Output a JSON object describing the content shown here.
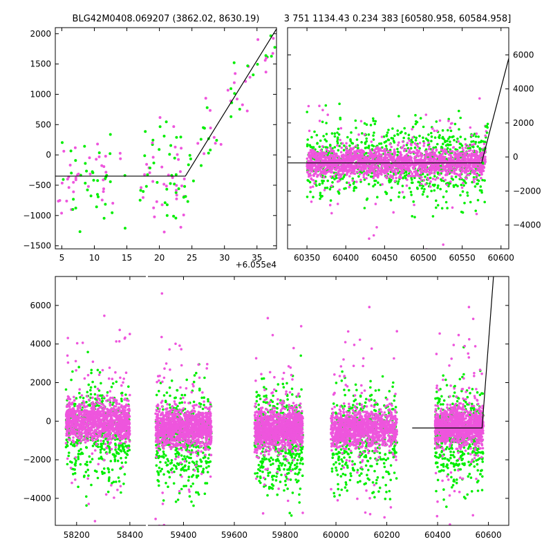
{
  "chart_data": [
    {
      "type": "scatter",
      "id": "top-left",
      "title": "BLG42M0408.069207 (3862.02, 8630.19)",
      "xlim": [
        4,
        38
      ],
      "ylim": [
        -1550,
        2100
      ],
      "xticks": [
        5,
        10,
        15,
        20,
        25,
        30,
        35
      ],
      "yticks": [
        -1500,
        -1000,
        -500,
        0,
        500,
        1000,
        1500,
        2000
      ],
      "x_offset_label": "+6.055e4",
      "series_colors": [
        "#00ee00",
        "#ee55dd"
      ],
      "model_line": {
        "x": [
          4,
          24,
          38
        ],
        "y": [
          -350,
          -350,
          2080
        ]
      }
    },
    {
      "type": "scatter",
      "id": "top-right",
      "title": "3 751 1134.43 0.234 383 [60580.958, 60584.958]",
      "xlim": [
        60325,
        60610
      ],
      "ylim": [
        -5400,
        7600
      ],
      "xticks": [
        60350,
        60400,
        60450,
        60500,
        60550,
        60600
      ],
      "yticks": [
        -4000,
        -2000,
        0,
        2000,
        4000,
        6000
      ],
      "series_colors": [
        "#00ee00",
        "#ee55dd"
      ],
      "model_line": {
        "x": [
          60325,
          60575,
          60610
        ],
        "y": [
          -350,
          -350,
          5800
        ]
      }
    },
    {
      "type": "scatter",
      "id": "bottom",
      "xlim": [
        58120,
        60680
      ],
      "ylim": [
        -5400,
        7500
      ],
      "xticks": [
        58200,
        58400,
        59400,
        59600,
        59800,
        60000,
        60200,
        60400,
        60600
      ],
      "yticks": [
        -4000,
        -2000,
        0,
        2000,
        4000,
        6000
      ],
      "broken_axis": true,
      "series_colors": [
        "#00ee00",
        "#ee55dd"
      ],
      "model_line": {
        "x": [
          60300,
          60575,
          60620
        ],
        "y": [
          -350,
          -350,
          7500
        ]
      }
    }
  ]
}
